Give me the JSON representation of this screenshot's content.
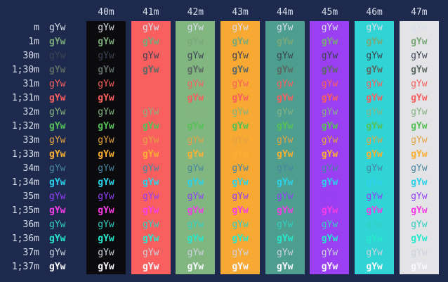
{
  "terminal": {
    "background": "#1e2a4d",
    "label_color": "#d8deea",
    "cell_text": "gYw",
    "columns": [
      {
        "label": "40m",
        "bg": "#0b0b0d"
      },
      {
        "label": "41m",
        "bg": "#f95f5f"
      },
      {
        "label": "42m",
        "bg": "#81b681"
      },
      {
        "label": "43m",
        "bg": "#f8a933"
      },
      {
        "label": "44m",
        "bg": "#4d9e8e"
      },
      {
        "label": "45m",
        "bg": "#9a3ff2"
      },
      {
        "label": "46m",
        "bg": "#30d4d4"
      },
      {
        "label": "47m",
        "bg": "#e4e4e6"
      }
    ],
    "rows": [
      {
        "label": "m",
        "fg": "#d8deea",
        "bold": false
      },
      {
        "label": "1m",
        "fg": "#7aa87a",
        "bold": true
      },
      {
        "label": "30m",
        "fg": "#3c4252",
        "bold": false
      },
      {
        "label": "1;30m",
        "fg": "#5b6964",
        "bold": true
      },
      {
        "label": "31m",
        "fg": "#f95f5f",
        "bold": false
      },
      {
        "label": "1;31m",
        "fg": "#f95f5f",
        "bold": true
      },
      {
        "label": "32m",
        "fg": "#84b383",
        "bold": false
      },
      {
        "label": "1;32m",
        "fg": "#55c156",
        "bold": true
      },
      {
        "label": "33m",
        "fg": "#e3a342",
        "bold": false
      },
      {
        "label": "1;33m",
        "fg": "#fbaf33",
        "bold": true
      },
      {
        "label": "34m",
        "fg": "#4886a0",
        "bold": false
      },
      {
        "label": "1;34m",
        "fg": "#2bd2ea",
        "bold": true
      },
      {
        "label": "35m",
        "fg": "#9140f5",
        "bold": false
      },
      {
        "label": "1;35m",
        "fg": "#f53ee5",
        "bold": true
      },
      {
        "label": "36m",
        "fg": "#33cfc1",
        "bold": false
      },
      {
        "label": "1;36m",
        "fg": "#27e8cd",
        "bold": true
      },
      {
        "label": "37m",
        "fg": "#ccd2de",
        "bold": false
      },
      {
        "label": "1;37m",
        "fg": "#f6f8fb",
        "bold": true
      }
    ]
  }
}
